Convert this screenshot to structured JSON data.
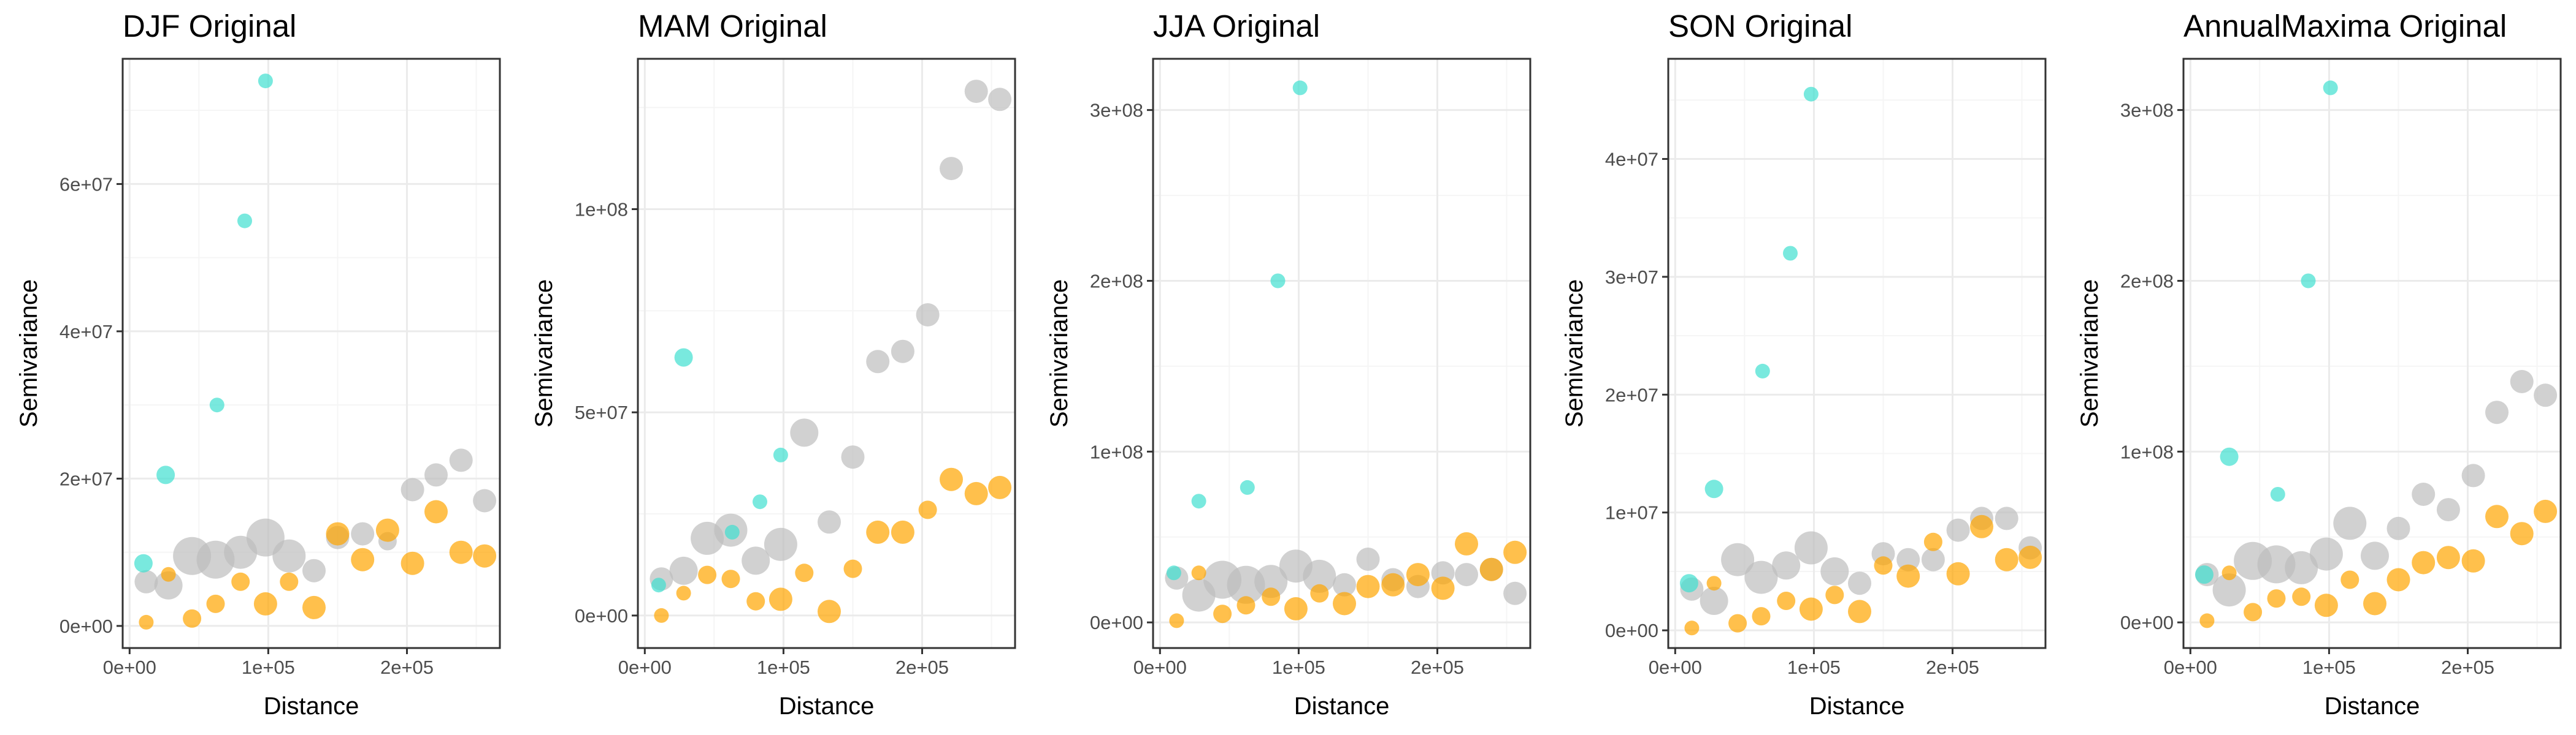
{
  "figure": {
    "colors": {
      "grey_series": "#bebebe",
      "orange_series": "#ffa500",
      "teal_series": "#40e0d0",
      "grid_major": "#ebebeb",
      "grid_minor": "#f5f5f5",
      "panel_border": "#333333",
      "tick_text": "#4d4d4d"
    }
  },
  "chart_data": [
    {
      "type": "scatter",
      "title": "DJF Original",
      "xlabel": "Distance",
      "ylabel": "Semivariance",
      "xlim": [
        -5000,
        267000
      ],
      "ylim": [
        -3000000,
        77000000
      ],
      "x_ticks": [
        0,
        100000,
        200000
      ],
      "x_tick_labels": [
        "0e+00",
        "1e+05",
        "2e+05"
      ],
      "y_ticks": [
        0,
        20000000,
        40000000,
        60000000
      ],
      "y_tick_labels": [
        "0e+00",
        "2e+07",
        "4e+07",
        "6e+07"
      ],
      "grid": true,
      "legend": "none",
      "series": [
        {
          "color": "grey",
          "x": [
            12000,
            28000,
            45000,
            62000,
            80000,
            98000,
            115000,
            133000,
            150000,
            168000,
            186000,
            204000,
            221000,
            239000,
            256000
          ],
          "y": [
            6000000,
            5500000,
            9500000,
            9000000,
            10000000,
            12000000,
            9500000,
            7500000,
            12000000,
            12500000,
            11500000,
            18500000,
            20500000,
            22500000,
            17000000
          ],
          "size": [
            3,
            4,
            6,
            6,
            5,
            6,
            5,
            3,
            3,
            3,
            2,
            3,
            3,
            3,
            3
          ]
        },
        {
          "color": "orange",
          "x": [
            12000,
            28000,
            45000,
            62000,
            80000,
            98000,
            115000,
            133000,
            150000,
            168000,
            186000,
            204000,
            221000,
            239000,
            256000
          ],
          "y": [
            500000,
            7000000,
            1000000,
            3000000,
            6000000,
            3000000,
            6000000,
            2500000,
            12500000,
            9000000,
            13000000,
            8500000,
            15500000,
            10000000,
            9500000
          ],
          "size": [
            1,
            1,
            2,
            2,
            2,
            3,
            2,
            3,
            3,
            3,
            3,
            3,
            3,
            3,
            3
          ]
        },
        {
          "color": "teal",
          "x": [
            10000,
            26000,
            63000,
            83000,
            98000
          ],
          "y": [
            8500000,
            20500000,
            30000000,
            55000000,
            74000000
          ],
          "size": [
            2,
            2,
            1,
            1,
            1
          ]
        }
      ]
    },
    {
      "type": "scatter",
      "title": "MAM Original",
      "xlabel": "Distance",
      "ylabel": "Semivariance",
      "xlim": [
        -5000,
        267000
      ],
      "ylim": [
        -8000000,
        137000000
      ],
      "x_ticks": [
        0,
        100000,
        200000
      ],
      "x_tick_labels": [
        "0e+00",
        "1e+05",
        "2e+05"
      ],
      "y_ticks": [
        0,
        50000000,
        100000000
      ],
      "y_tick_labels": [
        "0e+00",
        "5e+07",
        "1e+08"
      ],
      "grid": true,
      "legend": "none",
      "series": [
        {
          "color": "grey",
          "x": [
            12000,
            28000,
            45000,
            62000,
            80000,
            98000,
            115000,
            133000,
            150000,
            168000,
            186000,
            204000,
            221000,
            239000,
            256000
          ],
          "y": [
            9000000,
            11000000,
            19000000,
            21000000,
            13500000,
            17500000,
            45000000,
            23000000,
            39000000,
            62500000,
            65000000,
            74000000,
            110000000,
            129000000,
            127000000
          ],
          "size": [
            3,
            4,
            5,
            5,
            4,
            5,
            4,
            3,
            3,
            3,
            3,
            3,
            3,
            3,
            3
          ]
        },
        {
          "color": "orange",
          "x": [
            12000,
            28000,
            45000,
            62000,
            80000,
            98000,
            115000,
            133000,
            150000,
            168000,
            186000,
            204000,
            221000,
            239000,
            256000
          ],
          "y": [
            0,
            5500000,
            10000000,
            9000000,
            3500000,
            4000000,
            10500000,
            1000000,
            11500000,
            20500000,
            20500000,
            26000000,
            33500000,
            30000000,
            31500000
          ],
          "size": [
            1,
            1,
            2,
            2,
            2,
            3,
            2,
            3,
            2,
            3,
            3,
            2,
            3,
            3,
            3
          ]
        },
        {
          "color": "teal",
          "x": [
            10000,
            28000,
            63000,
            83000,
            98000
          ],
          "y": [
            7500000,
            63500000,
            20500000,
            28000000,
            39500000
          ],
          "size": [
            1,
            2,
            1,
            1,
            1
          ]
        }
      ]
    },
    {
      "type": "scatter",
      "title": "JJA Original",
      "xlabel": "Distance",
      "ylabel": "Semivariance",
      "xlim": [
        -5000,
        267000
      ],
      "ylim": [
        -15000000,
        330000000
      ],
      "x_ticks": [
        0,
        100000,
        200000
      ],
      "x_tick_labels": [
        "0e+00",
        "1e+05",
        "2e+05"
      ],
      "y_ticks": [
        0,
        100000000,
        200000000,
        300000000
      ],
      "y_tick_labels": [
        "0e+00",
        "1e+08",
        "2e+08",
        "3e+08"
      ],
      "grid": true,
      "legend": "none",
      "series": [
        {
          "color": "grey",
          "x": [
            12000,
            28000,
            45000,
            62000,
            80000,
            98000,
            115000,
            133000,
            150000,
            168000,
            186000,
            204000,
            221000,
            239000,
            256000
          ],
          "y": [
            26000000,
            16000000,
            25000000,
            22000000,
            24000000,
            33000000,
            27000000,
            22000000,
            37000000,
            25000000,
            21000000,
            29000000,
            28000000,
            31000000,
            17000000
          ],
          "size": [
            3,
            5,
            6,
            6,
            5,
            5,
            5,
            3,
            3,
            3,
            3,
            3,
            3,
            3,
            3
          ]
        },
        {
          "color": "orange",
          "x": [
            12000,
            28000,
            45000,
            62000,
            80000,
            98000,
            115000,
            133000,
            150000,
            168000,
            186000,
            204000,
            221000,
            239000,
            256000
          ],
          "y": [
            1000000,
            29000000,
            5000000,
            10000000,
            15000000,
            8000000,
            17000000,
            11000000,
            21000000,
            22000000,
            28000000,
            20000000,
            46000000,
            31000000,
            41000000
          ],
          "size": [
            1,
            1,
            2,
            2,
            2,
            3,
            2,
            3,
            3,
            3,
            3,
            3,
            3,
            3,
            3
          ]
        },
        {
          "color": "teal",
          "x": [
            10000,
            28000,
            63000,
            85000,
            101000
          ],
          "y": [
            29000000,
            71000000,
            79000000,
            200000000,
            313000000
          ],
          "size": [
            1,
            1,
            1,
            1,
            1
          ]
        }
      ]
    },
    {
      "type": "scatter",
      "title": "SON Original",
      "xlabel": "Distance",
      "ylabel": "Semivariance",
      "xlim": [
        -5000,
        267000
      ],
      "ylim": [
        -1500000,
        48500000
      ],
      "x_ticks": [
        0,
        100000,
        200000
      ],
      "x_tick_labels": [
        "0e+00",
        "1e+05",
        "2e+05"
      ],
      "y_ticks": [
        0,
        10000000,
        20000000,
        30000000,
        40000000
      ],
      "y_tick_labels": [
        "0e+00",
        "1e+07",
        "2e+07",
        "3e+07",
        "4e+07"
      ],
      "grid": true,
      "legend": "none",
      "series": [
        {
          "color": "grey",
          "x": [
            12000,
            28000,
            45000,
            62000,
            80000,
            98000,
            115000,
            133000,
            150000,
            168000,
            186000,
            204000,
            221000,
            239000,
            256000
          ],
          "y": [
            3500000,
            2500000,
            6000000,
            4500000,
            5500000,
            7000000,
            5000000,
            4000000,
            6500000,
            6000000,
            6000000,
            8500000,
            9500000,
            9500000,
            7000000
          ],
          "size": [
            3,
            4,
            5,
            5,
            4,
            5,
            4,
            3,
            3,
            3,
            3,
            3,
            3,
            3,
            3
          ]
        },
        {
          "color": "orange",
          "x": [
            12000,
            28000,
            45000,
            62000,
            80000,
            98000,
            115000,
            133000,
            150000,
            168000,
            186000,
            204000,
            221000,
            239000,
            256000
          ],
          "y": [
            200000,
            4000000,
            600000,
            1200000,
            2500000,
            1800000,
            3000000,
            1600000,
            5500000,
            4600000,
            7500000,
            4800000,
            8800000,
            6000000,
            6200000
          ],
          "size": [
            1,
            1,
            2,
            2,
            2,
            3,
            2,
            3,
            2,
            3,
            2,
            3,
            3,
            3,
            3
          ]
        },
        {
          "color": "teal",
          "x": [
            10000,
            28000,
            63000,
            83000,
            98000
          ],
          "y": [
            4000000,
            12000000,
            22000000,
            32000000,
            45500000
          ],
          "size": [
            2,
            2,
            1,
            1,
            1
          ]
        }
      ]
    },
    {
      "type": "scatter",
      "title": "AnnualMaxima Original",
      "xlabel": "Distance",
      "ylabel": "Semivariance",
      "xlim": [
        -5000,
        267000
      ],
      "ylim": [
        -15000000,
        330000000
      ],
      "x_ticks": [
        0,
        100000,
        200000
      ],
      "x_tick_labels": [
        "0e+00",
        "1e+05",
        "2e+05"
      ],
      "y_ticks": [
        0,
        100000000,
        200000000,
        300000000
      ],
      "y_tick_labels": [
        "0e+00",
        "1e+08",
        "2e+08",
        "3e+08"
      ],
      "grid": true,
      "legend": "none",
      "series": [
        {
          "color": "grey",
          "x": [
            12000,
            28000,
            45000,
            62000,
            80000,
            98000,
            115000,
            133000,
            150000,
            168000,
            186000,
            204000,
            221000,
            239000,
            256000
          ],
          "y": [
            28000000,
            19000000,
            36000000,
            34000000,
            32000000,
            40000000,
            58000000,
            39000000,
            55000000,
            75000000,
            66000000,
            86000000,
            123000000,
            141000000,
            133000000
          ],
          "size": [
            3,
            5,
            6,
            6,
            5,
            5,
            5,
            4,
            3,
            3,
            3,
            3,
            3,
            3,
            3
          ]
        },
        {
          "color": "orange",
          "x": [
            12000,
            28000,
            45000,
            62000,
            80000,
            98000,
            115000,
            133000,
            150000,
            168000,
            186000,
            204000,
            221000,
            239000,
            256000
          ],
          "y": [
            1000000,
            29000000,
            6000000,
            14000000,
            15000000,
            10000000,
            25000000,
            11000000,
            25000000,
            35000000,
            38000000,
            36000000,
            62000000,
            52000000,
            65000000
          ],
          "size": [
            1,
            1,
            2,
            2,
            2,
            3,
            2,
            3,
            3,
            3,
            3,
            3,
            3,
            3,
            3
          ]
        },
        {
          "color": "teal",
          "x": [
            10000,
            28000,
            63000,
            85000,
            101000
          ],
          "y": [
            28000000,
            97000000,
            75000000,
            200000000,
            313000000
          ],
          "size": [
            2,
            2,
            1,
            1,
            1
          ]
        }
      ]
    }
  ]
}
